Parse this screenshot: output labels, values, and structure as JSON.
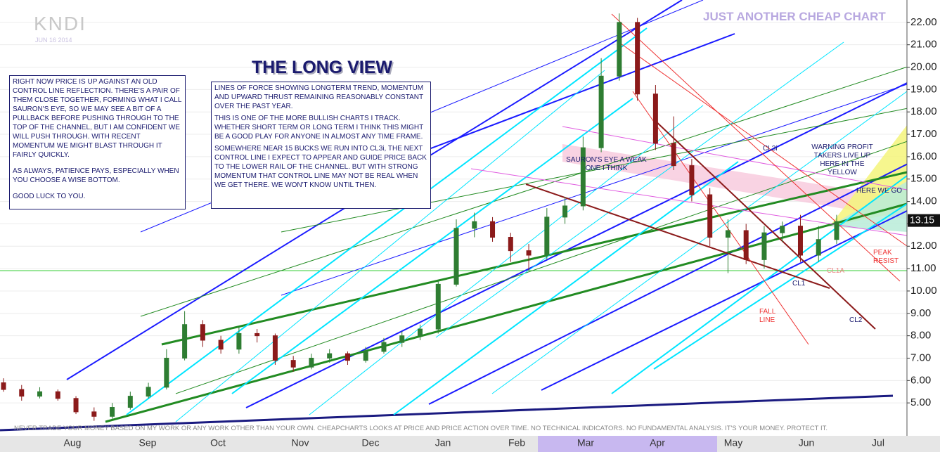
{
  "header": {
    "symbol": "KNDI",
    "date": "JUN 16 2014",
    "brand": "JUST ANOTHER CHEAP CHART",
    "title": "THE LONG VIEW"
  },
  "notes": {
    "left": [
      "RIGHT NOW PRICE IS UP AGAINST AN OLD CONTROL LINE REFLECTION. THERE'S A PAIR OF THEM CLOSE TOGETHER, FORMING WHAT I CALL SAURON'S EYE, SO WE MAY SEE A BIT OF A PULLBACK BEFORE PUSHING THROUGH TO THE TOP OF THE CHANNEL, BUT I AM CONFIDENT WE WILL PUSH THROUGH. WITH RECENT MOMENTUM WE MIGHT BLAST THROUGH IT FAIRLY QUICKLY.",
      "AS ALWAYS, PATIENCE PAYS, ESPECIALLY WHEN YOU CHOOSE A WISE BOTTOM.",
      "GOOD LUCK TO YOU."
    ],
    "middle": [
      "LINES OF FORCE SHOWING LONGTERM TREND, MOMENTUM AND UPWARD THRUST REMAINING REASONABLY CONSTANT OVER THE PAST YEAR.",
      "THIS IS ONE OF THE MORE BULLISH CHARTS I TRACK. WHETHER SHORT TERM OR LONG TERM I THINK THIS MIGHT BE A GOOD PLAY FOR ANYONE IN ALMOST ANY TIME FRAME.",
      "SOMEWHERE NEAR 15 BUCKS WE RUN INTO CL3i, THE NEXT CONTROL LINE I EXPECT TO APPEAR AND GUIDE PRICE BACK TO THE LOWER RAIL OF THE CHANNEL. BUT WITH STRONG MOMENTUM THAT CONTROL LINE MAY NOT BE REAL WHEN WE GET THERE. WE WON'T KNOW UNTIL THEN."
    ]
  },
  "chart_data": {
    "type": "candlestick",
    "categories": [
      "Aug",
      "Sep",
      "Oct",
      "Nov",
      "Dec",
      "Jan",
      "Feb",
      "Mar",
      "Apr",
      "May",
      "Jun",
      "Jul"
    ],
    "open": [
      5.9,
      5.6,
      5.3,
      5.5,
      5.2,
      4.6,
      4.4,
      4.8,
      5.3,
      5.7,
      7.0,
      8.5,
      7.8,
      7.4,
      8.1,
      8.0,
      6.9,
      6.6,
      7.0,
      7.2,
      6.9,
      7.3,
      7.7,
      8.0,
      8.3,
      10.3,
      12.8,
      13.1,
      12.4,
      11.8,
      11.6,
      13.3,
      13.8,
      16.4,
      19.6,
      22.0,
      18.8,
      16.6,
      15.6,
      14.3,
      12.4,
      12.7,
      11.4,
      12.6,
      12.9,
      11.6,
      12.3
    ],
    "high": [
      6.1,
      5.8,
      5.7,
      5.6,
      5.3,
      4.8,
      5.0,
      5.5,
      5.9,
      7.4,
      9.1,
      8.7,
      8.0,
      8.4,
      8.3,
      8.1,
      7.1,
      7.2,
      7.4,
      7.3,
      7.5,
      7.9,
      8.2,
      8.5,
      10.5,
      13.2,
      13.5,
      13.3,
      12.6,
      12.1,
      13.7,
      14.2,
      16.9,
      20.4,
      22.4,
      22.2,
      19.2,
      17.8,
      15.9,
      14.6,
      13.2,
      13.0,
      12.9,
      13.1,
      13.4,
      12.9,
      13.4
    ],
    "low": [
      5.5,
      5.1,
      5.2,
      5.1,
      4.5,
      4.2,
      4.3,
      4.7,
      5.2,
      5.6,
      6.9,
      7.5,
      7.2,
      7.2,
      7.7,
      6.7,
      6.4,
      6.5,
      6.8,
      6.7,
      6.8,
      7.2,
      7.5,
      7.8,
      8.1,
      10.2,
      12.4,
      12.2,
      11.3,
      10.9,
      11.4,
      13.0,
      13.6,
      16.2,
      19.4,
      18.5,
      16.3,
      15.4,
      14.0,
      12.0,
      10.8,
      11.2,
      11.0,
      12.2,
      11.3,
      11.3,
      12.1
    ],
    "close": [
      5.6,
      5.3,
      5.5,
      5.2,
      4.6,
      4.4,
      4.8,
      5.3,
      5.7,
      7.0,
      8.5,
      7.8,
      7.4,
      8.1,
      8.0,
      6.9,
      6.6,
      7.0,
      7.2,
      6.9,
      7.3,
      7.7,
      8.0,
      8.3,
      10.3,
      12.8,
      13.1,
      12.4,
      11.8,
      11.6,
      13.3,
      13.8,
      16.4,
      19.6,
      22.0,
      18.8,
      16.6,
      15.6,
      14.3,
      12.4,
      12.7,
      11.4,
      12.6,
      12.9,
      11.6,
      12.3,
      13.1
    ],
    "colors": {
      "up": "#2e7d32",
      "down": "#8b1a1a"
    },
    "ylim": [
      4,
      23
    ],
    "yticks": [
      {
        "value": 5,
        "label": "5.00"
      },
      {
        "value": 6,
        "label": "6.00"
      },
      {
        "value": 7,
        "label": "7.00"
      },
      {
        "value": 8,
        "label": "8.00"
      },
      {
        "value": 9,
        "label": "9.00"
      },
      {
        "value": 10,
        "label": "10.00"
      },
      {
        "value": 11,
        "label": "11.00"
      },
      {
        "value": 12,
        "label": "12.00"
      },
      {
        "value": 13,
        "label": "13.00"
      },
      {
        "value": 14,
        "label": "14.00"
      },
      {
        "value": 15,
        "label": "15.00"
      },
      {
        "value": 16,
        "label": "16.00"
      },
      {
        "value": 17,
        "label": "17.00"
      },
      {
        "value": 18,
        "label": "18.00"
      },
      {
        "value": 19,
        "label": "19.00"
      },
      {
        "value": 20,
        "label": "20.00"
      },
      {
        "value": 21,
        "label": "21.00"
      },
      {
        "value": 22,
        "label": "22.00"
      }
    ],
    "grid": true,
    "last_price": 13.15,
    "annotations": [
      "SAURON'S EYE A WEAK ONE I THINK",
      "CL3i",
      "WARNING PROFIT TAKERS LIVE UP HERE IN THE YELLOW",
      "HERE WE GO",
      "PEAK RESIST",
      "CL1A",
      "CL1",
      "FALL LINE",
      "CL2"
    ],
    "disclaimer": "NEVER TRADE YOUR MONEY BASED ON MY WORK OR ANY WORK OTHER THAN YOUR OWN. CHEAPCHARTS LOOKS AT PRICE AND PRICE ACTION OVER TIME. NO TECHNICAL INDICATORS. NO FUNDAMENTAL ANALYSIS. IT'S YOUR MONEY. PROTECT IT."
  }
}
